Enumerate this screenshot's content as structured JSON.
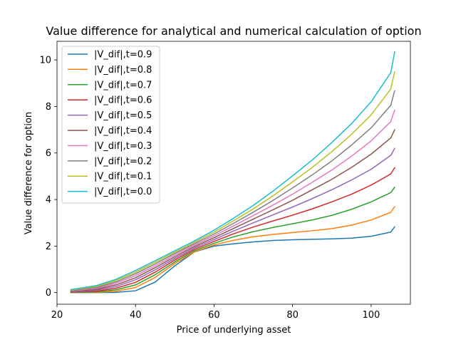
{
  "chart_data": {
    "type": "line",
    "title": "Value difference for analytical and numerical calculation of option",
    "xlabel": "Price of underlying asset",
    "ylabel": "Value difference for option",
    "xlim": [
      20,
      110
    ],
    "ylim": [
      -0.5,
      10.8
    ],
    "xticks": [
      20,
      40,
      60,
      80,
      100
    ],
    "yticks": [
      0,
      2,
      4,
      6,
      8,
      10
    ],
    "grid": false,
    "legend_position": "top-left",
    "x": [
      23.5,
      30,
      35,
      40,
      45,
      50,
      55,
      60,
      65,
      70,
      75,
      80,
      85,
      90,
      95,
      100,
      105,
      106
    ],
    "series": [
      {
        "name": "|V_dif|,t=0.9",
        "color": "#1f77b4",
        "values": [
          0.0,
          0.0,
          0.01,
          0.08,
          0.45,
          1.15,
          1.75,
          2.0,
          2.1,
          2.18,
          2.24,
          2.27,
          2.29,
          2.31,
          2.34,
          2.42,
          2.6,
          2.83
        ]
      },
      {
        "name": "|V_dif|,t=0.8",
        "color": "#ff7f0e",
        "values": [
          0.0,
          0.01,
          0.06,
          0.22,
          0.65,
          1.25,
          1.75,
          2.05,
          2.25,
          2.4,
          2.5,
          2.58,
          2.66,
          2.75,
          2.9,
          3.12,
          3.45,
          3.7
        ]
      },
      {
        "name": "|V_dif|,t=0.7",
        "color": "#2ca02c",
        "values": [
          0.01,
          0.03,
          0.12,
          0.33,
          0.77,
          1.32,
          1.8,
          2.12,
          2.4,
          2.62,
          2.8,
          2.96,
          3.12,
          3.32,
          3.58,
          3.9,
          4.3,
          4.53
        ]
      },
      {
        "name": "|V_dif|,t=0.6",
        "color": "#d62728",
        "values": [
          0.02,
          0.06,
          0.19,
          0.44,
          0.88,
          1.4,
          1.86,
          2.2,
          2.53,
          2.82,
          3.08,
          3.33,
          3.6,
          3.9,
          4.23,
          4.62,
          5.1,
          5.37
        ]
      },
      {
        "name": "|V_dif|,t=0.5",
        "color": "#9467bd",
        "values": [
          0.03,
          0.1,
          0.26,
          0.55,
          0.98,
          1.47,
          1.92,
          2.28,
          2.65,
          3.0,
          3.34,
          3.68,
          4.04,
          4.42,
          4.84,
          5.3,
          5.9,
          6.2
        ]
      },
      {
        "name": "|V_dif|,t=0.4",
        "color": "#8c564b",
        "values": [
          0.05,
          0.14,
          0.33,
          0.64,
          1.07,
          1.54,
          1.98,
          2.36,
          2.76,
          3.16,
          3.56,
          3.97,
          4.42,
          4.87,
          5.38,
          5.95,
          6.65,
          7.0
        ]
      },
      {
        "name": "|V_dif|,t=0.3",
        "color": "#e377c2",
        "values": [
          0.07,
          0.18,
          0.4,
          0.73,
          1.15,
          1.61,
          2.04,
          2.44,
          2.87,
          3.31,
          3.76,
          4.23,
          4.74,
          5.27,
          5.86,
          6.52,
          7.35,
          7.85
        ]
      },
      {
        "name": "|V_dif|,t=0.2",
        "color": "#7f7f7f",
        "values": [
          0.09,
          0.22,
          0.46,
          0.81,
          1.23,
          1.68,
          2.1,
          2.52,
          2.98,
          3.46,
          3.96,
          4.5,
          5.06,
          5.66,
          6.34,
          7.08,
          8.05,
          8.68
        ]
      },
      {
        "name": "|V_dif|,t=0.1",
        "color": "#bcbd22",
        "values": [
          0.11,
          0.26,
          0.52,
          0.88,
          1.3,
          1.74,
          2.16,
          2.6,
          3.09,
          3.6,
          4.16,
          4.76,
          5.38,
          6.06,
          6.8,
          7.64,
          8.75,
          9.5
        ]
      },
      {
        "name": "|V_dif|,t=0.0",
        "color": "#17becf",
        "values": [
          0.13,
          0.3,
          0.57,
          0.95,
          1.37,
          1.8,
          2.22,
          2.68,
          3.2,
          3.75,
          4.36,
          5.02,
          5.7,
          6.45,
          7.26,
          8.2,
          9.45,
          10.35
        ]
      }
    ]
  }
}
